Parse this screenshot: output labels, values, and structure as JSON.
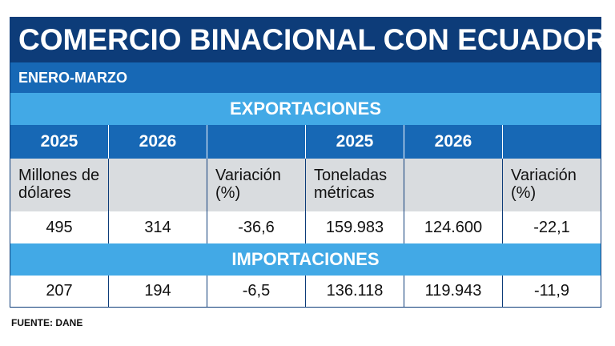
{
  "title": "COMERCIO BINACIONAL CON ECUADOR",
  "period": "ENERO-MARZO",
  "exports": {
    "band_label": "EXPORTACIONES",
    "years": [
      "2025",
      "2026",
      "",
      "2025",
      "2026",
      ""
    ],
    "units": [
      "Millones de dólares",
      "",
      "Variación (%)",
      "Toneladas métricas",
      "",
      "Variación (%)"
    ],
    "values": [
      "495",
      "314",
      "-36,6",
      "159.983",
      "124.600",
      "-22,1"
    ]
  },
  "imports": {
    "band_label": "IMPORTACIONES",
    "values": [
      "207",
      "194",
      "-6,5",
      "136.118",
      "119.943",
      "-11,9"
    ]
  },
  "source": "FUENTE: DANE",
  "colors": {
    "title_bg": "#0d3c79",
    "subtitle_bg": "#1768b5",
    "band_bg": "#42a9e6",
    "year_row_bg": "#1768b5",
    "units_row_bg": "#d9dcdf"
  }
}
